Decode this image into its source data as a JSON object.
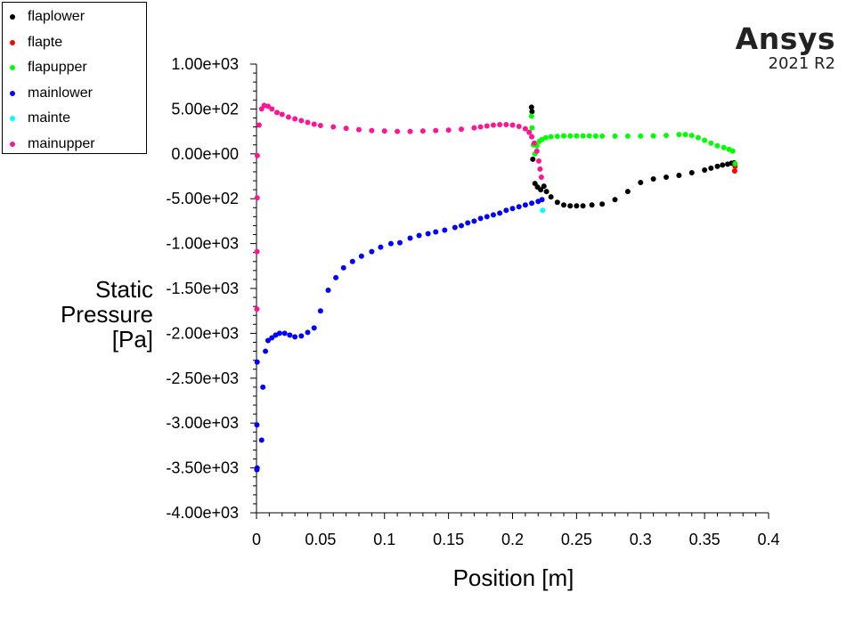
{
  "brand": {
    "name": "Ansys",
    "version": "2021 R2"
  },
  "chart_data": {
    "type": "scatter",
    "xlabel": "Position [m]",
    "ylabel": [
      "Static",
      "Pressure",
      "[Pa]"
    ],
    "xlim": [
      0,
      0.4
    ],
    "ylim": [
      -4000,
      1000
    ],
    "x_ticks": [
      0,
      0.05,
      0.1,
      0.15,
      0.2,
      0.25,
      0.3,
      0.35,
      0.4
    ],
    "x_tick_labels": [
      "0",
      "0.05",
      "0.1",
      "0.15",
      "0.2",
      "0.25",
      "0.3",
      "0.35",
      "0.4"
    ],
    "y_ticks": [
      1000,
      500,
      0,
      -500,
      -1000,
      -1500,
      -2000,
      -2500,
      -3000,
      -3500,
      -4000
    ],
    "y_tick_labels": [
      "1.00e+03",
      "5.00e+02",
      "0.00e+00",
      "-5.00e+02",
      "-1.00e+03",
      "-1.50e+03",
      "-2.00e+03",
      "-2.50e+03",
      "-3.00e+03",
      "-3.50e+03",
      "-4.00e+03"
    ],
    "legend_position": "top-left",
    "series": [
      {
        "name": "flaplower",
        "color": "#000000",
        "points": [
          [
            0.2148,
            520
          ],
          [
            0.2152,
            470
          ],
          [
            0.2158,
            -60
          ],
          [
            0.2175,
            -330
          ],
          [
            0.2195,
            -370
          ],
          [
            0.222,
            -400
          ],
          [
            0.2245,
            -360
          ],
          [
            0.2265,
            -420
          ],
          [
            0.23,
            -480
          ],
          [
            0.235,
            -540
          ],
          [
            0.24,
            -570
          ],
          [
            0.245,
            -580
          ],
          [
            0.25,
            -580
          ],
          [
            0.255,
            -580
          ],
          [
            0.262,
            -570
          ],
          [
            0.27,
            -560
          ],
          [
            0.28,
            -510
          ],
          [
            0.29,
            -420
          ],
          [
            0.3,
            -320
          ],
          [
            0.31,
            -280
          ],
          [
            0.32,
            -260
          ],
          [
            0.33,
            -240
          ],
          [
            0.34,
            -210
          ],
          [
            0.35,
            -180
          ],
          [
            0.355,
            -160
          ],
          [
            0.36,
            -140
          ],
          [
            0.364,
            -125
          ],
          [
            0.368,
            -115
          ],
          [
            0.371,
            -105
          ],
          [
            0.373,
            -100
          ]
        ]
      },
      {
        "name": "flapte",
        "color": "#ff0000",
        "points": [
          [
            0.3735,
            -190
          ],
          [
            0.3738,
            -140
          ]
        ]
      },
      {
        "name": "flapupper",
        "color": "#00ff00",
        "points": [
          [
            0.2148,
            420
          ],
          [
            0.2152,
            290
          ],
          [
            0.2162,
            100
          ],
          [
            0.2175,
            0
          ],
          [
            0.219,
            90
          ],
          [
            0.221,
            140
          ],
          [
            0.223,
            160
          ],
          [
            0.226,
            180
          ],
          [
            0.23,
            190
          ],
          [
            0.235,
            195
          ],
          [
            0.24,
            200
          ],
          [
            0.245,
            200
          ],
          [
            0.25,
            200
          ],
          [
            0.255,
            200
          ],
          [
            0.26,
            200
          ],
          [
            0.265,
            198
          ],
          [
            0.27,
            198
          ],
          [
            0.28,
            198
          ],
          [
            0.29,
            198
          ],
          [
            0.3,
            198
          ],
          [
            0.31,
            200
          ],
          [
            0.32,
            205
          ],
          [
            0.33,
            215
          ],
          [
            0.335,
            215
          ],
          [
            0.34,
            205
          ],
          [
            0.345,
            180
          ],
          [
            0.35,
            150
          ],
          [
            0.355,
            120
          ],
          [
            0.36,
            90
          ],
          [
            0.365,
            70
          ],
          [
            0.369,
            50
          ],
          [
            0.372,
            30
          ],
          [
            0.3738,
            -110
          ]
        ]
      },
      {
        "name": "mainlower",
        "color": "#0000ff",
        "points": [
          [
            0.0003,
            -3520
          ],
          [
            0.0005,
            -3500
          ],
          [
            0.0003,
            -3020
          ],
          [
            0.0005,
            -2320
          ],
          [
            0.004,
            -3190
          ],
          [
            0.005,
            -2600
          ],
          [
            0.007,
            -2200
          ],
          [
            0.009,
            -2080
          ],
          [
            0.012,
            -2050
          ],
          [
            0.015,
            -2020
          ],
          [
            0.018,
            -2000
          ],
          [
            0.022,
            -2000
          ],
          [
            0.026,
            -2020
          ],
          [
            0.03,
            -2040
          ],
          [
            0.035,
            -2030
          ],
          [
            0.04,
            -1990
          ],
          [
            0.045,
            -1940
          ],
          [
            0.05,
            -1750
          ],
          [
            0.056,
            -1520
          ],
          [
            0.062,
            -1380
          ],
          [
            0.068,
            -1270
          ],
          [
            0.075,
            -1200
          ],
          [
            0.082,
            -1140
          ],
          [
            0.09,
            -1090
          ],
          [
            0.097,
            -1040
          ],
          [
            0.105,
            -1000
          ],
          [
            0.112,
            -990
          ],
          [
            0.12,
            -940
          ],
          [
            0.127,
            -910
          ],
          [
            0.134,
            -890
          ],
          [
            0.14,
            -870
          ],
          [
            0.147,
            -850
          ],
          [
            0.155,
            -820
          ],
          [
            0.16,
            -800
          ],
          [
            0.165,
            -770
          ],
          [
            0.17,
            -750
          ],
          [
            0.175,
            -720
          ],
          [
            0.18,
            -700
          ],
          [
            0.185,
            -680
          ],
          [
            0.19,
            -660
          ],
          [
            0.195,
            -630
          ],
          [
            0.2,
            -610
          ],
          [
            0.205,
            -590
          ],
          [
            0.21,
            -570
          ],
          [
            0.215,
            -550
          ],
          [
            0.22,
            -530
          ],
          [
            0.223,
            -510
          ]
        ]
      },
      {
        "name": "mainte",
        "color": "#00ffff",
        "points": [
          [
            0.2235,
            -630
          ]
        ]
      },
      {
        "name": "mainupper",
        "color": "#ff1493",
        "points": [
          [
            0.0003,
            -1730
          ],
          [
            0.0004,
            -1090
          ],
          [
            0.0005,
            -490
          ],
          [
            0.0006,
            -20
          ],
          [
            0.002,
            320
          ],
          [
            0.004,
            500
          ],
          [
            0.006,
            540
          ],
          [
            0.009,
            530
          ],
          [
            0.012,
            500
          ],
          [
            0.016,
            460
          ],
          [
            0.02,
            440
          ],
          [
            0.025,
            410
          ],
          [
            0.03,
            390
          ],
          [
            0.035,
            370
          ],
          [
            0.04,
            350
          ],
          [
            0.045,
            330
          ],
          [
            0.05,
            315
          ],
          [
            0.06,
            300
          ],
          [
            0.07,
            285
          ],
          [
            0.08,
            270
          ],
          [
            0.09,
            260
          ],
          [
            0.1,
            255
          ],
          [
            0.11,
            250
          ],
          [
            0.12,
            250
          ],
          [
            0.13,
            255
          ],
          [
            0.14,
            260
          ],
          [
            0.15,
            265
          ],
          [
            0.16,
            275
          ],
          [
            0.17,
            290
          ],
          [
            0.175,
            300
          ],
          [
            0.18,
            310
          ],
          [
            0.185,
            320
          ],
          [
            0.19,
            325
          ],
          [
            0.195,
            325
          ],
          [
            0.2,
            320
          ],
          [
            0.205,
            305
          ],
          [
            0.21,
            280
          ],
          [
            0.213,
            240
          ],
          [
            0.215,
            190
          ],
          [
            0.217,
            120
          ],
          [
            0.219,
            30
          ],
          [
            0.2205,
            -80
          ],
          [
            0.2215,
            -170
          ],
          [
            0.2225,
            -260
          ]
        ]
      }
    ]
  }
}
